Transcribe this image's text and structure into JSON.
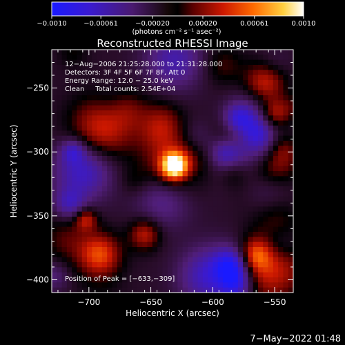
{
  "colorbar": {
    "ticks": [
      "−0.0010",
      "−0.00061",
      "−0.00020",
      "0.00020",
      "0.00061",
      "0.0010"
    ],
    "units_label": "(photons cm⁻² s⁻¹ asec⁻²)",
    "range": [
      -0.001,
      0.001
    ],
    "colormap": "blue-purple-black-red-orange-yellow-white"
  },
  "plot": {
    "title": "Reconstructed RHESSI Image",
    "info_lines": [
      "12−Aug−2006 21:25:28.000 to 21:31:28.000",
      "Detectors: 3F 4F 5F 6F 7F 8F, Att 0",
      "Energy Range: 12.0 − 25.0 keV",
      "Clean     Total counts: 2.54E+04"
    ],
    "peak_label": "Position of Peak = [−633,−309]",
    "footer_date": "7−May−2022 01:48"
  },
  "chart_data": {
    "type": "heatmap",
    "title": "Reconstructed RHESSI Image",
    "xlabel": "Heliocentric X (arcsec)",
    "ylabel": "Heliocentric Y (arcsec)",
    "xlim": [
      -730,
      -535
    ],
    "ylim": [
      -410,
      -220
    ],
    "x_ticks": [
      -700,
      -650,
      -600,
      -550
    ],
    "y_ticks": [
      -250,
      -300,
      -350,
      -400
    ],
    "x_tick_labels": [
      "−700",
      "−650",
      "−600",
      "−550"
    ],
    "y_tick_labels": [
      "−250",
      "−300",
      "−350",
      "−400"
    ],
    "peak": {
      "x": -633,
      "y": -309
    },
    "total_counts": "2.54E+04",
    "energy_range_kev": [
      12.0,
      25.0
    ],
    "grid": false
  }
}
